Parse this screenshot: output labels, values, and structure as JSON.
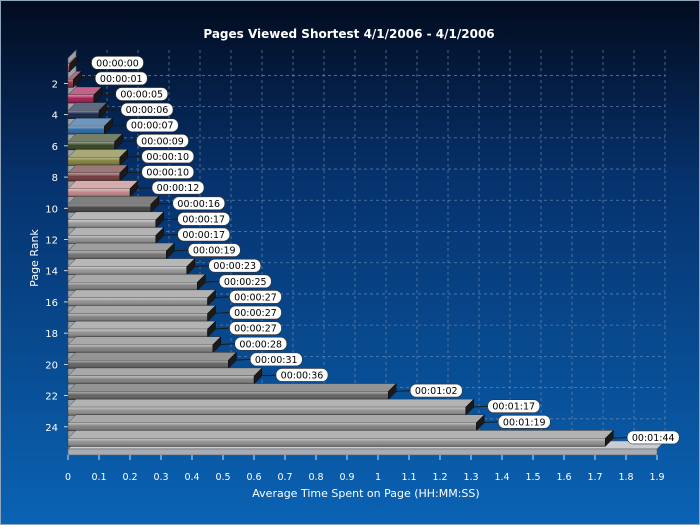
{
  "chart_data": {
    "type": "bar",
    "orientation": "horizontal",
    "title": "Pages Viewed Shortest 4/1/2006  - 4/1/2006",
    "xlabel": "Average Time Spent on Page (HH:MM:SS)",
    "ylabel": "Page Rank",
    "xlim": [
      0,
      1.9
    ],
    "xticks": [
      "0",
      "0.1",
      "0.2",
      "0.3",
      "0.4",
      "0.5",
      "0.6",
      "0.7",
      "0.8",
      "0.9",
      "1",
      "1.1",
      "1.2",
      "1.3",
      "1.4",
      "1.5",
      "1.6",
      "1.7",
      "1.8",
      "1.9"
    ],
    "yticks": [
      "2",
      "4",
      "6",
      "8",
      "10",
      "12",
      "14",
      "16",
      "18",
      "20",
      "22",
      "24"
    ],
    "grid": true,
    "legend": "none",
    "bars": [
      {
        "rank": 1,
        "value": 0.0,
        "label": "00:00:00",
        "color": "#b04a4a"
      },
      {
        "rank": 2,
        "value": 0.017,
        "label": "00:00:01",
        "color": "#8a2030"
      },
      {
        "rank": 3,
        "value": 0.083,
        "label": "00:00:05",
        "color": "#a0104a"
      },
      {
        "rank": 4,
        "value": 0.1,
        "label": "00:00:06",
        "color": "#0a1a40"
      },
      {
        "rank": 5,
        "value": 0.117,
        "label": "00:00:07",
        "color": "#1e5fa0"
      },
      {
        "rank": 6,
        "value": 0.15,
        "label": "00:00:09",
        "color": "#2a3a1a"
      },
      {
        "rank": 7,
        "value": 0.167,
        "label": "00:00:10",
        "color": "#7a7a30"
      },
      {
        "rank": 8,
        "value": 0.167,
        "label": "00:00:10",
        "color": "#6a3030"
      },
      {
        "rank": 9,
        "value": 0.2,
        "label": "00:00:12",
        "color": "#c08080"
      },
      {
        "rank": 10,
        "value": 0.267,
        "label": "00:00:16",
        "color": "#3a3a3a"
      },
      {
        "rank": 11,
        "value": 0.283,
        "label": "00:00:17",
        "color": "#909090"
      },
      {
        "rank": 12,
        "value": 0.283,
        "label": "00:00:17",
        "color": "#8a8a8a"
      },
      {
        "rank": 13,
        "value": 0.317,
        "label": "00:00:19",
        "color": "#6a6a6a"
      },
      {
        "rank": 14,
        "value": 0.383,
        "label": "00:00:23",
        "color": "#909090"
      },
      {
        "rank": 15,
        "value": 0.417,
        "label": "00:00:25",
        "color": "#7a7a7a"
      },
      {
        "rank": 16,
        "value": 0.45,
        "label": "00:00:27",
        "color": "#8a8a8a"
      },
      {
        "rank": 17,
        "value": 0.45,
        "label": "00:00:27",
        "color": "#7a7a7a"
      },
      {
        "rank": 18,
        "value": 0.45,
        "label": "00:00:27",
        "color": "#8a8a8a"
      },
      {
        "rank": 19,
        "value": 0.467,
        "label": "00:00:28",
        "color": "#7a7a7a"
      },
      {
        "rank": 20,
        "value": 0.517,
        "label": "00:00:31",
        "color": "#5a5a5a"
      },
      {
        "rank": 21,
        "value": 0.6,
        "label": "00:00:36",
        "color": "#7a7a7a"
      },
      {
        "rank": 22,
        "value": 1.033,
        "label": "00:01:02",
        "color": "#5a5a5a"
      },
      {
        "rank": 23,
        "value": 1.283,
        "label": "00:01:17",
        "color": "#8a8a8a"
      },
      {
        "rank": 24,
        "value": 1.317,
        "label": "00:01:19",
        "color": "#7a7a7a"
      },
      {
        "rank": 25,
        "value": 1.733,
        "label": "00:01:44",
        "color": "#8a8a8a"
      }
    ]
  }
}
